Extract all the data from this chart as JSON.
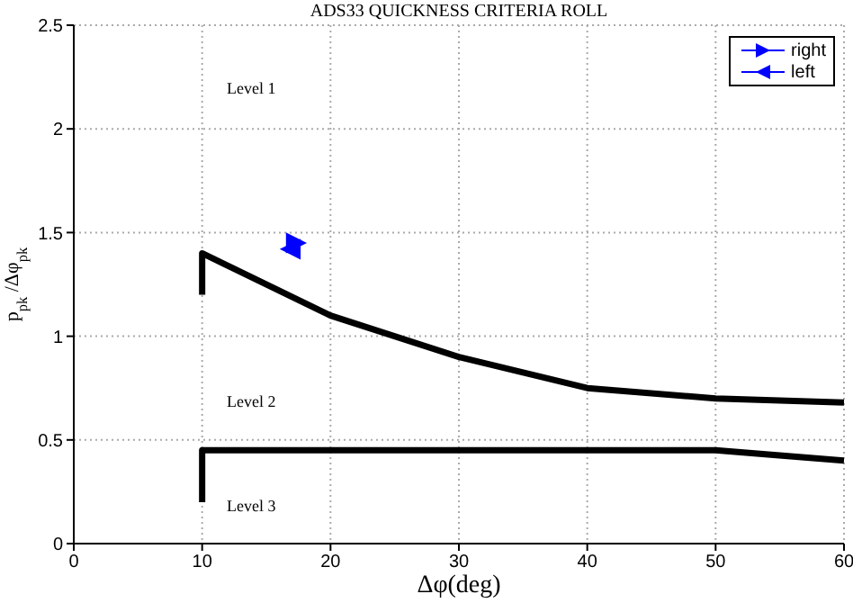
{
  "chart_data": {
    "type": "line",
    "title": "ADS33 QUICKNESS CRITERIA ROLL",
    "xlabel": "Δφ(deg)",
    "ylabel": "p$_{pk}$/Δφ$_{pk}$",
    "xlim": [
      0,
      60
    ],
    "xticks": [
      0,
      10,
      20,
      30,
      40,
      50,
      60
    ],
    "ylim": [
      0,
      2.5
    ],
    "yticks": [
      0,
      0.5,
      1,
      1.5,
      2,
      2.5
    ],
    "grid": true,
    "legend": "top right",
    "line_style": "solid",
    "series": [
      {
        "color": "#000000",
        "x": [
          10,
          10,
          20,
          30,
          40,
          50,
          60
        ],
        "values": [
          1.2,
          1.4,
          1.1,
          0.9,
          0.75,
          0.7,
          0.68
        ],
        "marker": "none"
      },
      {
        "color": "#000000",
        "x": [
          10,
          10,
          50,
          60
        ],
        "values": [
          0.2,
          0.45,
          0.45,
          0.4
        ],
        "marker": "none"
      },
      {
        "type": "scatter",
        "name": "right",
        "color": "#0000ff",
        "x": [
          17.3
        ],
        "values": [
          1.45
        ],
        "marker": "triangle"
      },
      {
        "type": "scatter",
        "name": "left",
        "color": "#0000ff",
        "x": [
          16.9
        ],
        "values": [
          1.42
        ],
        "marker": "triangle"
      }
    ],
    "annotations": [
      "Level 1",
      "Level 2",
      "Level 3"
    ]
  }
}
